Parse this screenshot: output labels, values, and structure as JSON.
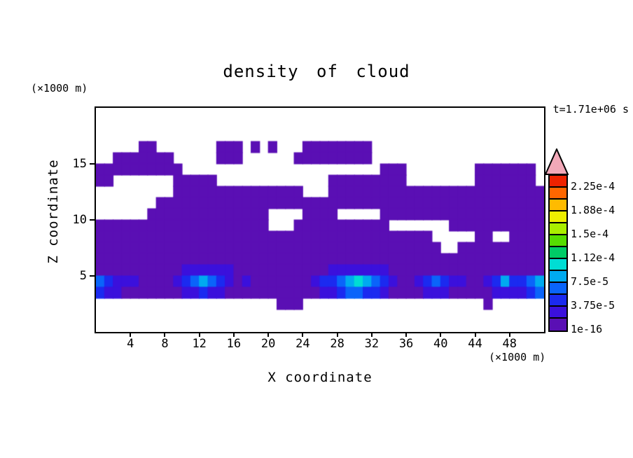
{
  "title": "density of cloud",
  "timestamp": "t=1.71e+06 s",
  "axes": {
    "x": {
      "label": "X coordinate",
      "unit": "(×1000 m)",
      "range": [
        0,
        52
      ],
      "ticks": [
        4,
        8,
        12,
        16,
        20,
        24,
        28,
        32,
        36,
        40,
        44,
        48
      ]
    },
    "z": {
      "label": "Z coordinate",
      "unit": "(×1000 m)",
      "range": [
        0,
        20
      ],
      "ticks": [
        5,
        10,
        15
      ]
    }
  },
  "colorbar": {
    "labels_bottom_to_top": [
      "1e-16",
      "3.75e-5",
      "7.5e-5",
      "1.12e-4",
      "1.5e-4",
      "1.88e-4",
      "2.25e-4"
    ],
    "segment_colors_bottom_to_top": [
      "#5a0fb4",
      "#3b10dc",
      "#1b2af0",
      "#0a64fa",
      "#00aaf0",
      "#00ddd4",
      "#00cc66",
      "#55dd00",
      "#aaee00",
      "#eeee00",
      "#ffbb00",
      "#ff6600",
      "#ee2200"
    ],
    "arrow_color": "#f2a8b8"
  },
  "chart_data": {
    "type": "heatmap",
    "title": "density of cloud",
    "xlabel": "X coordinate (×1000 m)",
    "ylabel": "Z coordinate (×1000 m)",
    "time_annotation": "t=1.71e+06 s",
    "x_range": [
      0,
      52
    ],
    "z_range": [
      0,
      20
    ],
    "visible_contour_levels": [
      "1e-16",
      "3.75e-5",
      "7.5e-5",
      "1.12e-4",
      "1.5e-4",
      "1.88e-4",
      "2.25e-4"
    ],
    "cell_encoding": "20 rows (z=20 km top to z=0 km bottom) of 52 cells (x=0..52 km); digit 0 = clear air, digits 1-6 = filled density bands mapped to colorbar segments 1-6 bottom-up",
    "grid_rows_top_to_bottom": [
      "0000000000000000000000000000000000000000000000000000",
      "0000000000000000000000000000000000000000000000000000",
      "0000000000000000000000000000000000000000000000000000",
      "0000011000000011101010001111111100000000000000000000",
      "0011111110000011100000011111111100000000000000000000",
      "1111111111000000000000000000000001110000000011111110",
      "1100000001111100000000000001111111110000000011111110",
      "0000000001111111111111110001111111111111111111111111",
      "0000000111111111111111111111111111111111111111111111",
      "0000001111111111111100001111000001111111111111111111",
      "1111111111111111111100011111111111000000011111111111",
      "1111111111111111111111111111111111111110000011001111",
      "1111111111111111111111111111111111111111001111111111",
      "1111111111111111111111111111111111111111111111111111",
      "1111111111222222111111111112222222111111111111111111",
      "4322211112345432121111111233456543211234322112353345",
      "3221111111223221111111111122344332111122211111222234",
      "0000000000000000000001110000000000000000000001000000",
      "0000000000000000000000000000000000000000000000000000",
      "0000000000000000000000000000000000000000000000000000"
    ]
  }
}
